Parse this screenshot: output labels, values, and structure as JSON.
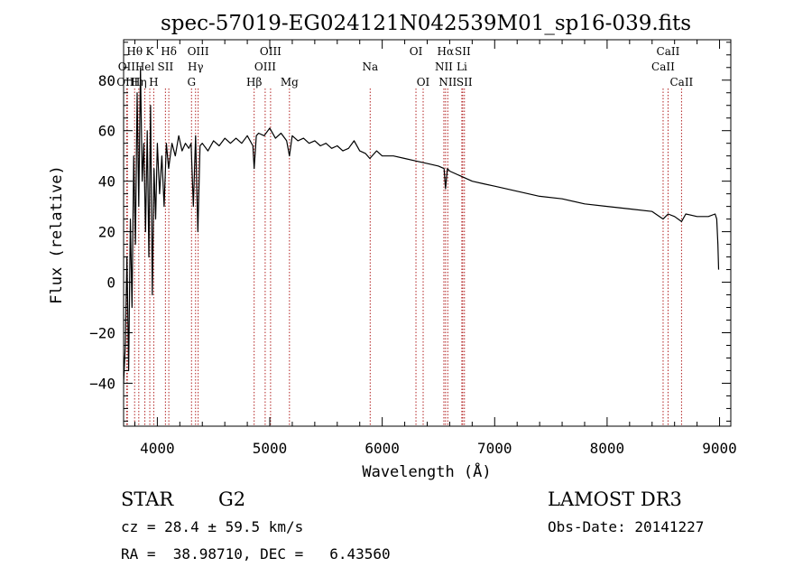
{
  "chart_data": {
    "type": "line",
    "title": "spec-57019-EG024121N042539M01_sp16-039.fits",
    "xlabel": "Wavelength (Å)",
    "ylabel": "Flux (relative)",
    "xlim": [
      3700,
      9100
    ],
    "ylim": [
      -57,
      96
    ],
    "xticks": [
      4000,
      5000,
      6000,
      7000,
      8000,
      9000
    ],
    "yticks": [
      -40,
      -20,
      0,
      20,
      40,
      60,
      80
    ],
    "xtick_labels": [
      "4000",
      "5000",
      "6000",
      "7000",
      "8000",
      "9000"
    ],
    "ytick_labels": [
      "−40",
      "−20",
      "0",
      "20",
      "40",
      "60",
      "80"
    ],
    "series": [
      {
        "name": "flux",
        "x": [
          3700,
          3715,
          3730,
          3745,
          3760,
          3775,
          3790,
          3805,
          3820,
          3835,
          3850,
          3865,
          3880,
          3895,
          3910,
          3925,
          3940,
          3955,
          3970,
          3985,
          4000,
          4020,
          4040,
          4060,
          4080,
          4100,
          4130,
          4160,
          4190,
          4220,
          4250,
          4280,
          4300,
          4320,
          4340,
          4360,
          4380,
          4400,
          4450,
          4500,
          4550,
          4600,
          4650,
          4700,
          4750,
          4800,
          4850,
          4861,
          4880,
          4900,
          4950,
          5000,
          5050,
          5100,
          5150,
          5175,
          5200,
          5250,
          5300,
          5350,
          5400,
          5450,
          5500,
          5550,
          5600,
          5650,
          5700,
          5750,
          5800,
          5850,
          5890,
          5950,
          6000,
          6100,
          6200,
          6300,
          6400,
          6500,
          6550,
          6563,
          6580,
          6600,
          6700,
          6800,
          6900,
          7000,
          7200,
          7400,
          7600,
          7800,
          8000,
          8200,
          8400,
          8498,
          8542,
          8600,
          8662,
          8700,
          8800,
          8900,
          8960,
          8975,
          8985,
          8992
        ],
        "y": [
          -40,
          -25,
          10,
          -35,
          25,
          -10,
          50,
          15,
          75,
          30,
          85,
          40,
          55,
          20,
          60,
          10,
          70,
          -5,
          45,
          25,
          55,
          35,
          50,
          30,
          55,
          45,
          55,
          50,
          58,
          52,
          55,
          53,
          55,
          30,
          58,
          20,
          54,
          55,
          52,
          56,
          54,
          57,
          55,
          57,
          55,
          58,
          54,
          45,
          58,
          59,
          58,
          61,
          57,
          59,
          56,
          50,
          58,
          56,
          57,
          55,
          56,
          54,
          55,
          53,
          54,
          52,
          53,
          56,
          52,
          51,
          49,
          52,
          50,
          50,
          49,
          48,
          47,
          46,
          45,
          37,
          45,
          44,
          42,
          40,
          39,
          38,
          36,
          34,
          33,
          31,
          30,
          29,
          28,
          25,
          27,
          26,
          24,
          27,
          26,
          26,
          27,
          25,
          15,
          5
        ]
      }
    ],
    "line_markers": [
      {
        "name": "Hθ",
        "x": 3798,
        "row": 1
      },
      {
        "name": "OII",
        "x": 3727,
        "row": 2
      },
      {
        "name": "OIII",
        "x": 3734,
        "row": 3
      },
      {
        "name": "K",
        "x": 3933,
        "row": 1
      },
      {
        "name": "Hel",
        "x": 3889,
        "row": 2
      },
      {
        "name": "Hη",
        "x": 3835,
        "row": 3
      },
      {
        "name": "SII",
        "x": 4072,
        "row": 2
      },
      {
        "name": "H",
        "x": 3968,
        "row": 3
      },
      {
        "name": "Hδ",
        "x": 4102,
        "row": 1
      },
      {
        "name": "OIII",
        "x": 4363,
        "row": 1
      },
      {
        "name": "Hγ",
        "x": 4340,
        "row": 2
      },
      {
        "name": "G",
        "x": 4304,
        "row": 3
      },
      {
        "name": "OIII",
        "x": 5007,
        "row": 1
      },
      {
        "name": "OIII",
        "x": 4959,
        "row": 2
      },
      {
        "name": "Hβ",
        "x": 4861,
        "row": 3
      },
      {
        "name": "Mg",
        "x": 5175,
        "row": 3
      },
      {
        "name": "Na",
        "x": 5893,
        "row": 2
      },
      {
        "name": "OI",
        "x": 6300,
        "row": 1
      },
      {
        "name": "OI",
        "x": 6364,
        "row": 3
      },
      {
        "name": "Hα",
        "x": 6563,
        "row": 1
      },
      {
        "name": "NII",
        "x": 6548,
        "row": 2
      },
      {
        "name": "NII",
        "x": 6583,
        "row": 3
      },
      {
        "name": "SII",
        "x": 6716,
        "row": 1
      },
      {
        "name": "Li",
        "x": 6708,
        "row": 2
      },
      {
        "name": "SII",
        "x": 6731,
        "row": 3
      },
      {
        "name": "CaII",
        "x": 8542,
        "row": 1
      },
      {
        "name": "CaII",
        "x": 8498,
        "row": 2
      },
      {
        "name": "CaII",
        "x": 8662,
        "row": 3
      }
    ]
  },
  "info": {
    "object_class": "STAR",
    "subclass": "G2",
    "survey": "LAMOST DR3",
    "cz": "cz = 28.4 ± 59.5 km/s",
    "obs_date": "Obs-Date: 20141227",
    "coords": "RA =  38.98710, DEC =   6.43560"
  },
  "colors": {
    "line": "#000000",
    "marker": "#b22222",
    "text": "#000000"
  }
}
